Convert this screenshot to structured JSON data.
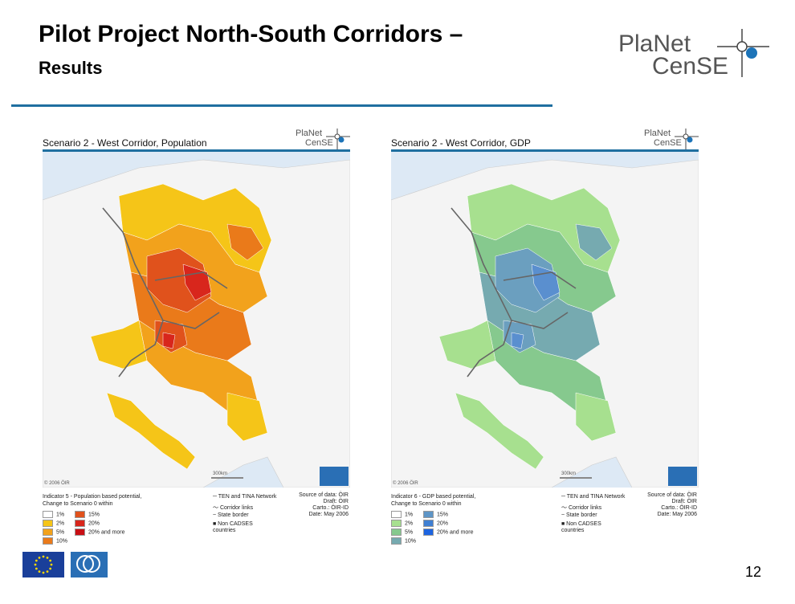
{
  "slide": {
    "title": "Pilot Project North-South Corridors –",
    "subtitle": "Results",
    "page_number": "12"
  },
  "logo": {
    "line1": "PlaNet",
    "line2": "CenSE"
  },
  "panel_logo": {
    "line1": "PlaNet",
    "line2": "CenSE"
  },
  "panels": [
    {
      "title": "Scenario 2 - West Corridor, Population",
      "indicator_line1": "Indicator 5 - Population based potential,",
      "indicator_line2": "Change to Scenario 0 within",
      "classes": [
        {
          "label": "1%",
          "color": "#ffffff"
        },
        {
          "label": "2%",
          "color": "#f5c518"
        },
        {
          "label": "5%",
          "color": "#f2a21c"
        },
        {
          "label": "10%",
          "color": "#ea7a1a"
        },
        {
          "label": "15%",
          "color": "#e0521c"
        },
        {
          "label": "20%",
          "color": "#d8261c"
        },
        {
          "label": "20% and more",
          "color": "#c80f14"
        }
      ],
      "palette": {
        "a": "#f5c518",
        "b": "#f2a21c",
        "c": "#ea7a1a",
        "d": "#e0521c",
        "e": "#d8261c"
      }
    },
    {
      "title": "Scenario 2 - West Corridor, GDP",
      "indicator_line1": "Indicator 6 - GDP based potential,",
      "indicator_line2": "Change to Scenario 0 within",
      "classes": [
        {
          "label": "1%",
          "color": "#ffffff"
        },
        {
          "label": "2%",
          "color": "#a7e08f"
        },
        {
          "label": "5%",
          "color": "#86c98e"
        },
        {
          "label": "10%",
          "color": "#76aab0"
        },
        {
          "label": "15%",
          "color": "#5e95c6"
        },
        {
          "label": "20%",
          "color": "#3f7fd2"
        },
        {
          "label": "20% and more",
          "color": "#1d64e0"
        }
      ],
      "palette": {
        "a": "#a7e08f",
        "b": "#86c98e",
        "c": "#76aab0",
        "d": "#6b9fbf",
        "e": "#5a8fcf"
      }
    }
  ],
  "map_legend": {
    "network": "TEN and TINA Network",
    "corridor": "Corridor links",
    "border": "State border",
    "non_cadses_1": "Non CADSES",
    "non_cadses_2": "countries",
    "scale": "300km",
    "copyright": "© 2006 ÖIR"
  },
  "source": {
    "line1": "Source of data: ÖIR",
    "line2": "Draft: ÖIR",
    "line3": "Carto.: ÖIR-ID",
    "line4": "Date: May 2006"
  },
  "footer_logos": {
    "cadses": "INTERREG III B CADSES"
  }
}
